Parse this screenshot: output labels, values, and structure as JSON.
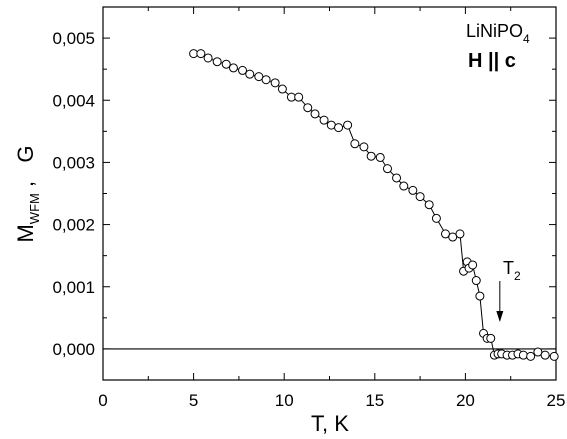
{
  "chart_data": {
    "type": "scatter",
    "xlabel": "T, K",
    "ylabel": {
      "main": "M",
      "subscript": "WFM",
      "suffix": " ,   G"
    },
    "xlim": [
      0,
      25
    ],
    "ylim": [
      -0.0005,
      0.0055
    ],
    "x_ticks": [
      0,
      5,
      10,
      15,
      20,
      25
    ],
    "x_tick_labels": [
      "0",
      "5",
      "10",
      "15",
      "20",
      "25"
    ],
    "y_ticks": [
      0.0,
      0.001,
      0.002,
      0.003,
      0.004,
      0.005
    ],
    "y_tick_labels": [
      "0,000",
      "0,001",
      "0,002",
      "0,003",
      "0,004",
      "0,005"
    ],
    "zero_line": 0,
    "grid": false,
    "marker": "open-circle",
    "connected": true,
    "annotations": {
      "material": {
        "text": "LiNiPO",
        "subscript": "4"
      },
      "field": {
        "text": "H || c"
      },
      "transition": {
        "text": "T",
        "subscript": "2",
        "x": 21.9
      }
    },
    "series": [
      {
        "x": [
          5.0,
          5.4,
          5.8,
          6.3,
          6.8,
          7.2,
          7.7,
          8.1,
          8.6,
          9.0,
          9.5,
          9.9,
          10.4,
          10.8,
          11.3,
          11.7,
          12.2,
          12.6,
          13.0,
          13.5,
          13.9,
          14.4,
          14.8,
          15.3,
          15.7,
          16.2,
          16.6,
          17.1,
          17.5,
          18.0,
          18.4,
          18.9,
          19.3,
          19.7,
          19.9,
          20.1,
          20.2,
          20.4,
          20.6,
          20.8,
          21.0,
          21.2,
          21.4,
          21.6,
          21.8,
          22.0,
          22.3,
          22.6,
          22.9,
          23.2,
          23.6,
          24.0,
          24.4,
          24.9
        ],
        "y": [
          0.00475,
          0.00475,
          0.00468,
          0.00462,
          0.00458,
          0.00452,
          0.00448,
          0.00442,
          0.00438,
          0.00433,
          0.00428,
          0.00418,
          0.00405,
          0.00405,
          0.00388,
          0.00378,
          0.00368,
          0.0036,
          0.00356,
          0.0036,
          0.0033,
          0.00325,
          0.0031,
          0.00308,
          0.0029,
          0.00275,
          0.00262,
          0.00255,
          0.00245,
          0.00232,
          0.0021,
          0.00185,
          0.0018,
          0.00185,
          0.00125,
          0.0014,
          0.0013,
          0.00135,
          0.0011,
          0.00085,
          0.00025,
          0.00017,
          0.00017,
          -0.0001,
          -8e-05,
          -8e-05,
          -0.0001,
          -0.0001,
          -8e-05,
          -0.0001,
          -0.00012,
          -5e-05,
          -0.0001,
          -0.00012
        ]
      }
    ]
  }
}
